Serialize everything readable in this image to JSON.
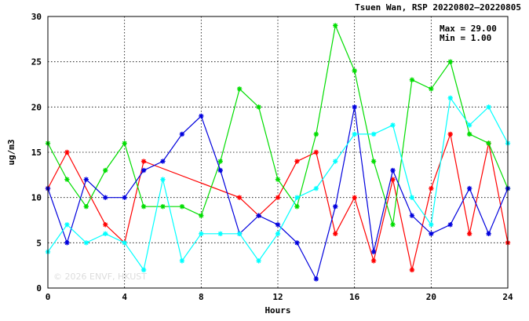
{
  "chart_data": {
    "type": "line",
    "title": "Tsuen Wan, RSP 20220802–20220805",
    "stats": {
      "max": "Max = 29.00",
      "min": "Min =  1.00"
    },
    "watermark": "© 2026  ENVF, HKUST",
    "xlabel": "Hours",
    "ylabel": "ug/m3",
    "xlim": [
      0,
      24
    ],
    "ylim": [
      0,
      30
    ],
    "xticks": [
      0,
      4,
      8,
      12,
      16,
      20,
      24
    ],
    "yticks": [
      0,
      5,
      10,
      15,
      20,
      25,
      30
    ],
    "grid": true,
    "series": [
      {
        "color": "#ff0000",
        "points": [
          [
            0,
            11
          ],
          [
            1,
            15
          ],
          [
            3,
            7
          ],
          [
            4,
            5
          ],
          [
            5,
            14
          ],
          [
            10,
            10
          ],
          [
            11,
            8
          ],
          [
            12,
            10
          ],
          [
            13,
            14
          ],
          [
            14,
            15
          ],
          [
            15,
            6
          ],
          [
            16,
            10
          ],
          [
            17,
            3
          ],
          [
            18,
            12
          ],
          [
            19,
            2
          ],
          [
            20,
            11
          ],
          [
            21,
            17
          ],
          [
            22,
            6
          ],
          [
            23,
            16
          ],
          [
            24,
            5
          ]
        ]
      },
      {
        "color": "#00dd00",
        "points": [
          [
            0,
            16
          ],
          [
            1,
            12
          ],
          [
            2,
            9
          ],
          [
            3,
            13
          ],
          [
            4,
            16
          ],
          [
            5,
            9
          ],
          [
            6,
            9
          ],
          [
            7,
            9
          ],
          [
            8,
            8
          ],
          [
            9,
            14
          ],
          [
            10,
            22
          ],
          [
            11,
            20
          ],
          [
            12,
            12
          ],
          [
            13,
            9
          ],
          [
            14,
            17
          ],
          [
            15,
            29
          ],
          [
            16,
            24
          ],
          [
            17,
            14
          ],
          [
            18,
            7
          ],
          [
            19,
            23
          ],
          [
            20,
            22
          ],
          [
            21,
            25
          ],
          [
            22,
            17
          ],
          [
            23,
            16
          ],
          [
            24,
            11
          ]
        ]
      },
      {
        "color": "#0000dd",
        "points": [
          [
            0,
            11
          ],
          [
            1,
            5
          ],
          [
            2,
            12
          ],
          [
            3,
            10
          ],
          [
            4,
            10
          ],
          [
            5,
            13
          ],
          [
            6,
            14
          ],
          [
            7,
            17
          ],
          [
            8,
            19
          ],
          [
            9,
            13
          ],
          [
            10,
            6
          ],
          [
            11,
            8
          ],
          [
            12,
            7
          ],
          [
            13,
            5
          ],
          [
            14,
            1
          ],
          [
            15,
            9
          ],
          [
            16,
            20
          ],
          [
            17,
            4
          ],
          [
            18,
            13
          ],
          [
            19,
            8
          ],
          [
            20,
            6
          ],
          [
            21,
            7
          ],
          [
            22,
            11
          ],
          [
            23,
            6
          ],
          [
            24,
            11
          ]
        ]
      },
      {
        "color": "#00ffff",
        "points": [
          [
            0,
            4
          ],
          [
            1,
            7
          ],
          [
            2,
            5
          ],
          [
            3,
            6
          ],
          [
            4,
            5
          ],
          [
            5,
            2
          ],
          [
            6,
            12
          ],
          [
            7,
            3
          ],
          [
            8,
            6
          ],
          [
            9,
            6
          ],
          [
            10,
            6
          ],
          [
            11,
            3
          ],
          [
            12,
            6
          ],
          [
            13,
            10
          ],
          [
            14,
            11
          ],
          [
            15,
            14
          ],
          [
            16,
            17
          ],
          [
            17,
            17
          ],
          [
            18,
            18
          ],
          [
            19,
            10
          ],
          [
            20,
            7
          ],
          [
            21,
            21
          ],
          [
            22,
            18
          ],
          [
            23,
            20
          ],
          [
            24,
            16
          ]
        ]
      }
    ]
  }
}
